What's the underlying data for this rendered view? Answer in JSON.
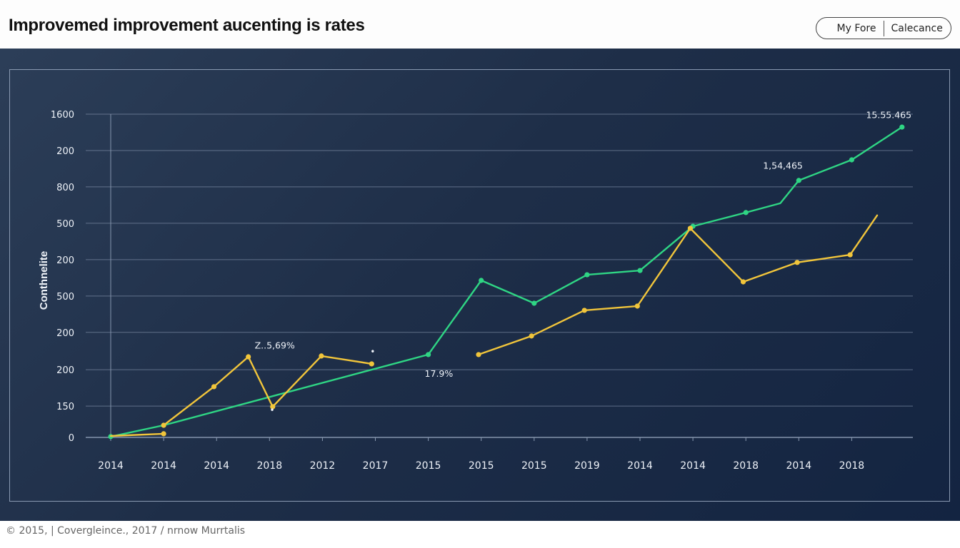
{
  "header": {
    "title": "Improvemed improvement aucenting is rates",
    "toggle": {
      "left_label": "My Fore",
      "right_label": "Calecance"
    }
  },
  "footer": {
    "text": "© 2015, | Covergleince., 2017 / nrnow Murrtalis"
  },
  "colors": {
    "panel_bg": "#1e2e48",
    "grid": "#8a9ab2",
    "series_green": "#2fd584",
    "series_yellow": "#f1c53b",
    "text_light": "#eef2f8"
  },
  "chart_data": {
    "type": "line",
    "title": "Improvemed improvement aucenting is rates",
    "xlabel": "",
    "ylabel": "Conthnelite",
    "ylim": [
      0,
      1600
    ],
    "grid": true,
    "legend": "none",
    "y_ticks": [
      {
        "label": "1600",
        "value": 1600
      },
      {
        "label": "200",
        "value": 1420
      },
      {
        "label": "800",
        "value": 1240
      },
      {
        "label": "500",
        "value": 1060
      },
      {
        "label": "200",
        "value": 880
      },
      {
        "label": "500",
        "value": 700
      },
      {
        "label": "200",
        "value": 520
      },
      {
        "label": "200",
        "value": 335
      },
      {
        "label": "150",
        "value": 155
      },
      {
        "label": "0",
        "value": 0
      }
    ],
    "categories": [
      "2014",
      "2014",
      "2014",
      "2018",
      "2012",
      "2017",
      "2015",
      "2015",
      "2015",
      "2019",
      "2014",
      "2014",
      "2018",
      "2014",
      "2018"
    ],
    "x_positions": [
      0,
      1,
      2,
      3,
      4,
      5,
      6,
      7,
      8,
      9,
      10,
      11,
      12,
      13,
      14
    ],
    "series": [
      {
        "name": "green",
        "color": "#2fd584",
        "points": [
          {
            "x": 0,
            "y": 4
          },
          {
            "x": 1,
            "y": 60
          },
          {
            "x": 6,
            "y": 410
          },
          {
            "x": 7,
            "y": 777
          },
          {
            "x": 8,
            "y": 664
          },
          {
            "x": 9,
            "y": 805
          },
          {
            "x": 10,
            "y": 826
          },
          {
            "x": 11,
            "y": 1045
          },
          {
            "x": 12,
            "y": 1113
          },
          {
            "x": 12.65,
            "y": 1159,
            "marker": false
          },
          {
            "x": 13,
            "y": 1272
          },
          {
            "x": 14,
            "y": 1374
          },
          {
            "x": 14.95,
            "y": 1536
          }
        ]
      },
      {
        "name": "yellow",
        "color": "#f1c53b",
        "segments": [
          [
            {
              "x": 0,
              "y": 7,
              "marker": false
            },
            {
              "x": 1,
              "y": 18
            }
          ],
          [
            {
              "x": 1,
              "y": 60
            },
            {
              "x": 1.95,
              "y": 251
            },
            {
              "x": 2.6,
              "y": 399
            },
            {
              "x": 3.06,
              "y": 152
            },
            {
              "x": 3.98,
              "y": 403
            },
            {
              "x": 4.93,
              "y": 364
            }
          ],
          [
            {
              "x": 6.95,
              "y": 410
            },
            {
              "x": 7.95,
              "y": 502
            },
            {
              "x": 8.95,
              "y": 629
            },
            {
              "x": 9.95,
              "y": 650
            },
            {
              "x": 10.95,
              "y": 1035
            },
            {
              "x": 11.95,
              "y": 770
            },
            {
              "x": 12.97,
              "y": 866
            },
            {
              "x": 13.97,
              "y": 904
            },
            {
              "x": 14.48,
              "y": 1099,
              "marker": false
            }
          ]
        ]
      }
    ],
    "annotations": [
      {
        "text": "Z..5,69%",
        "x": 3.1,
        "y": 440
      },
      {
        "text": "17.9%",
        "x": 6.2,
        "y": 300
      },
      {
        "text": "1,54,465",
        "x": 12.7,
        "y": 1330
      },
      {
        "text": "15.55.465",
        "x": 14.7,
        "y": 1580
      },
      {
        "text": "•",
        "x": 4.95,
        "y": 410
      },
      {
        "text": "•",
        "x": 3.05,
        "y": 120
      }
    ]
  }
}
